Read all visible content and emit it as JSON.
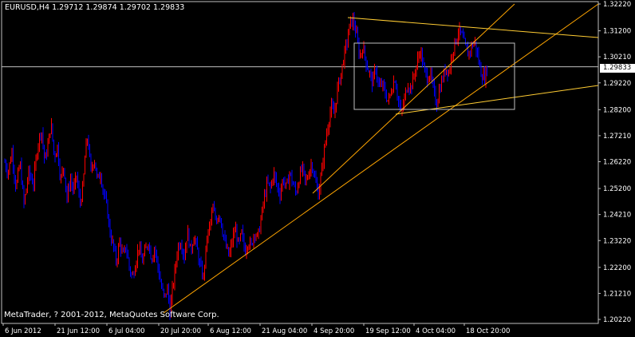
{
  "header": {
    "symbol": "EURUSD,H4",
    "ohlc": "1.29712 1.29874 1.29702 1.29833",
    "text": "EURUSD,H4  1.29712 1.29874 1.29702 1.29833"
  },
  "copyright": "MetaTrader, ? 2001-2012, MetaQuotes Software Corp.",
  "current_price_label": "1.29833",
  "colors": {
    "background": "#000000",
    "frame": "#c0c0c0",
    "up_candle": "#ff0000",
    "down_candle": "#0000ff",
    "trendline": "#ffa500",
    "channel_line": "#ffcc33",
    "rectangle": "#c0c0c0",
    "bid_line": "#c0c0c0",
    "text": "#ffffff"
  },
  "chart_data": {
    "type": "candlestick",
    "symbol": "EURUSD",
    "timeframe": "H4",
    "title": "",
    "xlabel": "",
    "ylabel": "",
    "ylim": [
      1.2022,
      1.3222
    ],
    "y_ticks": [
      "1.32220",
      "1.31200",
      "1.30210",
      "1.29833",
      "1.29220",
      "1.28200",
      "1.27210",
      "1.26220",
      "1.25200",
      "1.24210",
      "1.23220",
      "1.22200",
      "1.21210",
      "1.20220"
    ],
    "x_ticks": [
      "6 Jun 2012",
      "21 Jun 12:00",
      "6 Jul 04:00",
      "20 Jul 20:00",
      "6 Aug 12:00",
      "21 Aug 04:00",
      "4 Sep 20:00",
      "19 Sep 12:00",
      "4 Oct 04:00",
      "18 Oct 20:00"
    ],
    "grid": false,
    "last_price": 1.29833,
    "price_path": [
      [
        0,
        1.262
      ],
      [
        4,
        1.258
      ],
      [
        9,
        1.266
      ],
      [
        14,
        1.252
      ],
      [
        19,
        1.262
      ],
      [
        24,
        1.246
      ],
      [
        30,
        1.258
      ],
      [
        36,
        1.254
      ],
      [
        41,
        1.268
      ],
      [
        46,
        1.275
      ],
      [
        50,
        1.262
      ],
      [
        55,
        1.27
      ],
      [
        58,
        1.277
      ],
      [
        62,
        1.264
      ],
      [
        66,
        1.268
      ],
      [
        70,
        1.255
      ],
      [
        74,
        1.261
      ],
      [
        78,
        1.248
      ],
      [
        82,
        1.256
      ],
      [
        86,
        1.251
      ],
      [
        90,
        1.257
      ],
      [
        94,
        1.246
      ],
      [
        98,
        1.252
      ],
      [
        101,
        1.266
      ],
      [
        104,
        1.272
      ],
      [
        108,
        1.258
      ],
      [
        112,
        1.264
      ],
      [
        116,
        1.255
      ],
      [
        120,
        1.258
      ],
      [
        124,
        1.25
      ],
      [
        128,
        1.245
      ],
      [
        132,
        1.235
      ],
      [
        136,
        1.23
      ],
      [
        140,
        1.224
      ],
      [
        144,
        1.232
      ],
      [
        148,
        1.226
      ],
      [
        152,
        1.23
      ],
      [
        156,
        1.222
      ],
      [
        160,
        1.218
      ],
      [
        164,
        1.224
      ],
      [
        168,
        1.23
      ],
      [
        172,
        1.224
      ],
      [
        176,
        1.228
      ],
      [
        180,
        1.232
      ],
      [
        184,
        1.225
      ],
      [
        188,
        1.23
      ],
      [
        192,
        1.222
      ],
      [
        196,
        1.215
      ],
      [
        200,
        1.21
      ],
      [
        204,
        1.214
      ],
      [
        207,
        1.205
      ],
      [
        210,
        1.213
      ],
      [
        213,
        1.22
      ],
      [
        217,
        1.23
      ],
      [
        221,
        1.232
      ],
      [
        225,
        1.226
      ],
      [
        229,
        1.236
      ],
      [
        233,
        1.228
      ],
      [
        237,
        1.234
      ],
      [
        241,
        1.229
      ],
      [
        245,
        1.222
      ],
      [
        249,
        1.218
      ],
      [
        253,
        1.232
      ],
      [
        257,
        1.238
      ],
      [
        261,
        1.244
      ],
      [
        265,
        1.24
      ],
      [
        269,
        1.243
      ],
      [
        273,
        1.236
      ],
      [
        277,
        1.23
      ],
      [
        281,
        1.226
      ],
      [
        285,
        1.232
      ],
      [
        289,
        1.237
      ],
      [
        293,
        1.23
      ],
      [
        297,
        1.235
      ],
      [
        301,
        1.228
      ],
      [
        305,
        1.232
      ],
      [
        309,
        1.23
      ],
      [
        313,
        1.236
      ],
      [
        317,
        1.233
      ],
      [
        321,
        1.24
      ],
      [
        325,
        1.248
      ],
      [
        329,
        1.254
      ],
      [
        333,
        1.252
      ],
      [
        337,
        1.258
      ],
      [
        341,
        1.253
      ],
      [
        345,
        1.25
      ],
      [
        349,
        1.256
      ],
      [
        353,
        1.252
      ],
      [
        357,
        1.258
      ],
      [
        361,
        1.254
      ],
      [
        365,
        1.25
      ],
      [
        369,
        1.256
      ],
      [
        373,
        1.26
      ],
      [
        377,
        1.254
      ],
      [
        381,
        1.258
      ],
      [
        385,
        1.262
      ],
      [
        389,
        1.255
      ],
      [
        393,
        1.25
      ],
      [
        397,
        1.258
      ],
      [
        401,
        1.268
      ],
      [
        405,
        1.276
      ],
      [
        409,
        1.283
      ],
      [
        413,
        1.28
      ],
      [
        417,
        1.29
      ],
      [
        421,
        1.295
      ],
      [
        425,
        1.302
      ],
      [
        429,
        1.308
      ],
      [
        433,
        1.315
      ],
      [
        437,
        1.316
      ],
      [
        441,
        1.31
      ],
      [
        445,
        1.302
      ],
      [
        449,
        1.306
      ],
      [
        453,
        1.3
      ],
      [
        457,
        1.296
      ],
      [
        461,
        1.292
      ],
      [
        465,
        1.298
      ],
      [
        469,
        1.29
      ],
      [
        473,
        1.292
      ],
      [
        477,
        1.288
      ],
      [
        481,
        1.285
      ],
      [
        485,
        1.29
      ],
      [
        489,
        1.294
      ],
      [
        493,
        1.286
      ],
      [
        497,
        1.28
      ],
      [
        501,
        1.286
      ],
      [
        505,
        1.292
      ],
      [
        509,
        1.29
      ],
      [
        513,
        1.295
      ],
      [
        517,
        1.3
      ],
      [
        521,
        1.305
      ],
      [
        525,
        1.298
      ],
      [
        529,
        1.294
      ],
      [
        533,
        1.296
      ],
      [
        537,
        1.29
      ],
      [
        541,
        1.284
      ],
      [
        545,
        1.29
      ],
      [
        549,
        1.294
      ],
      [
        553,
        1.298
      ],
      [
        557,
        1.296
      ],
      [
        561,
        1.304
      ],
      [
        565,
        1.308
      ],
      [
        569,
        1.312
      ],
      [
        573,
        1.31
      ],
      [
        577,
        1.306
      ],
      [
        581,
        1.303
      ],
      [
        585,
        1.306
      ],
      [
        589,
        1.308
      ],
      [
        593,
        1.302
      ],
      [
        597,
        1.296
      ],
      [
        601,
        1.294
      ],
      [
        605,
        1.298
      ]
    ],
    "objects": {
      "trendlines": [
        {
          "from": [
            "20 Jul 20:00",
            1.205
          ],
          "to": [
            "right edge",
            1.32
          ],
          "color": "#ffa500"
        },
        {
          "from": [
            "4 Sep 20:00",
            1.25
          ],
          "to": [
            "right edge",
            1.3222
          ],
          "color": "#ffa500"
        }
      ],
      "channel_lines": [
        {
          "from": [
            "4 Sep 20:00",
            1.3175
          ],
          "to": [
            "right edge",
            1.3085
          ],
          "color": "#ffcc33"
        },
        {
          "from": [
            "19 Sep 12:00",
            1.28
          ],
          "to": [
            "right edge",
            1.292
          ],
          "color": "#ffcc33"
        }
      ],
      "rectangle": {
        "price_top": 1.3065,
        "price_bottom": 1.282,
        "color": "#c0c0c0"
      },
      "bid_line": 1.29833
    }
  }
}
